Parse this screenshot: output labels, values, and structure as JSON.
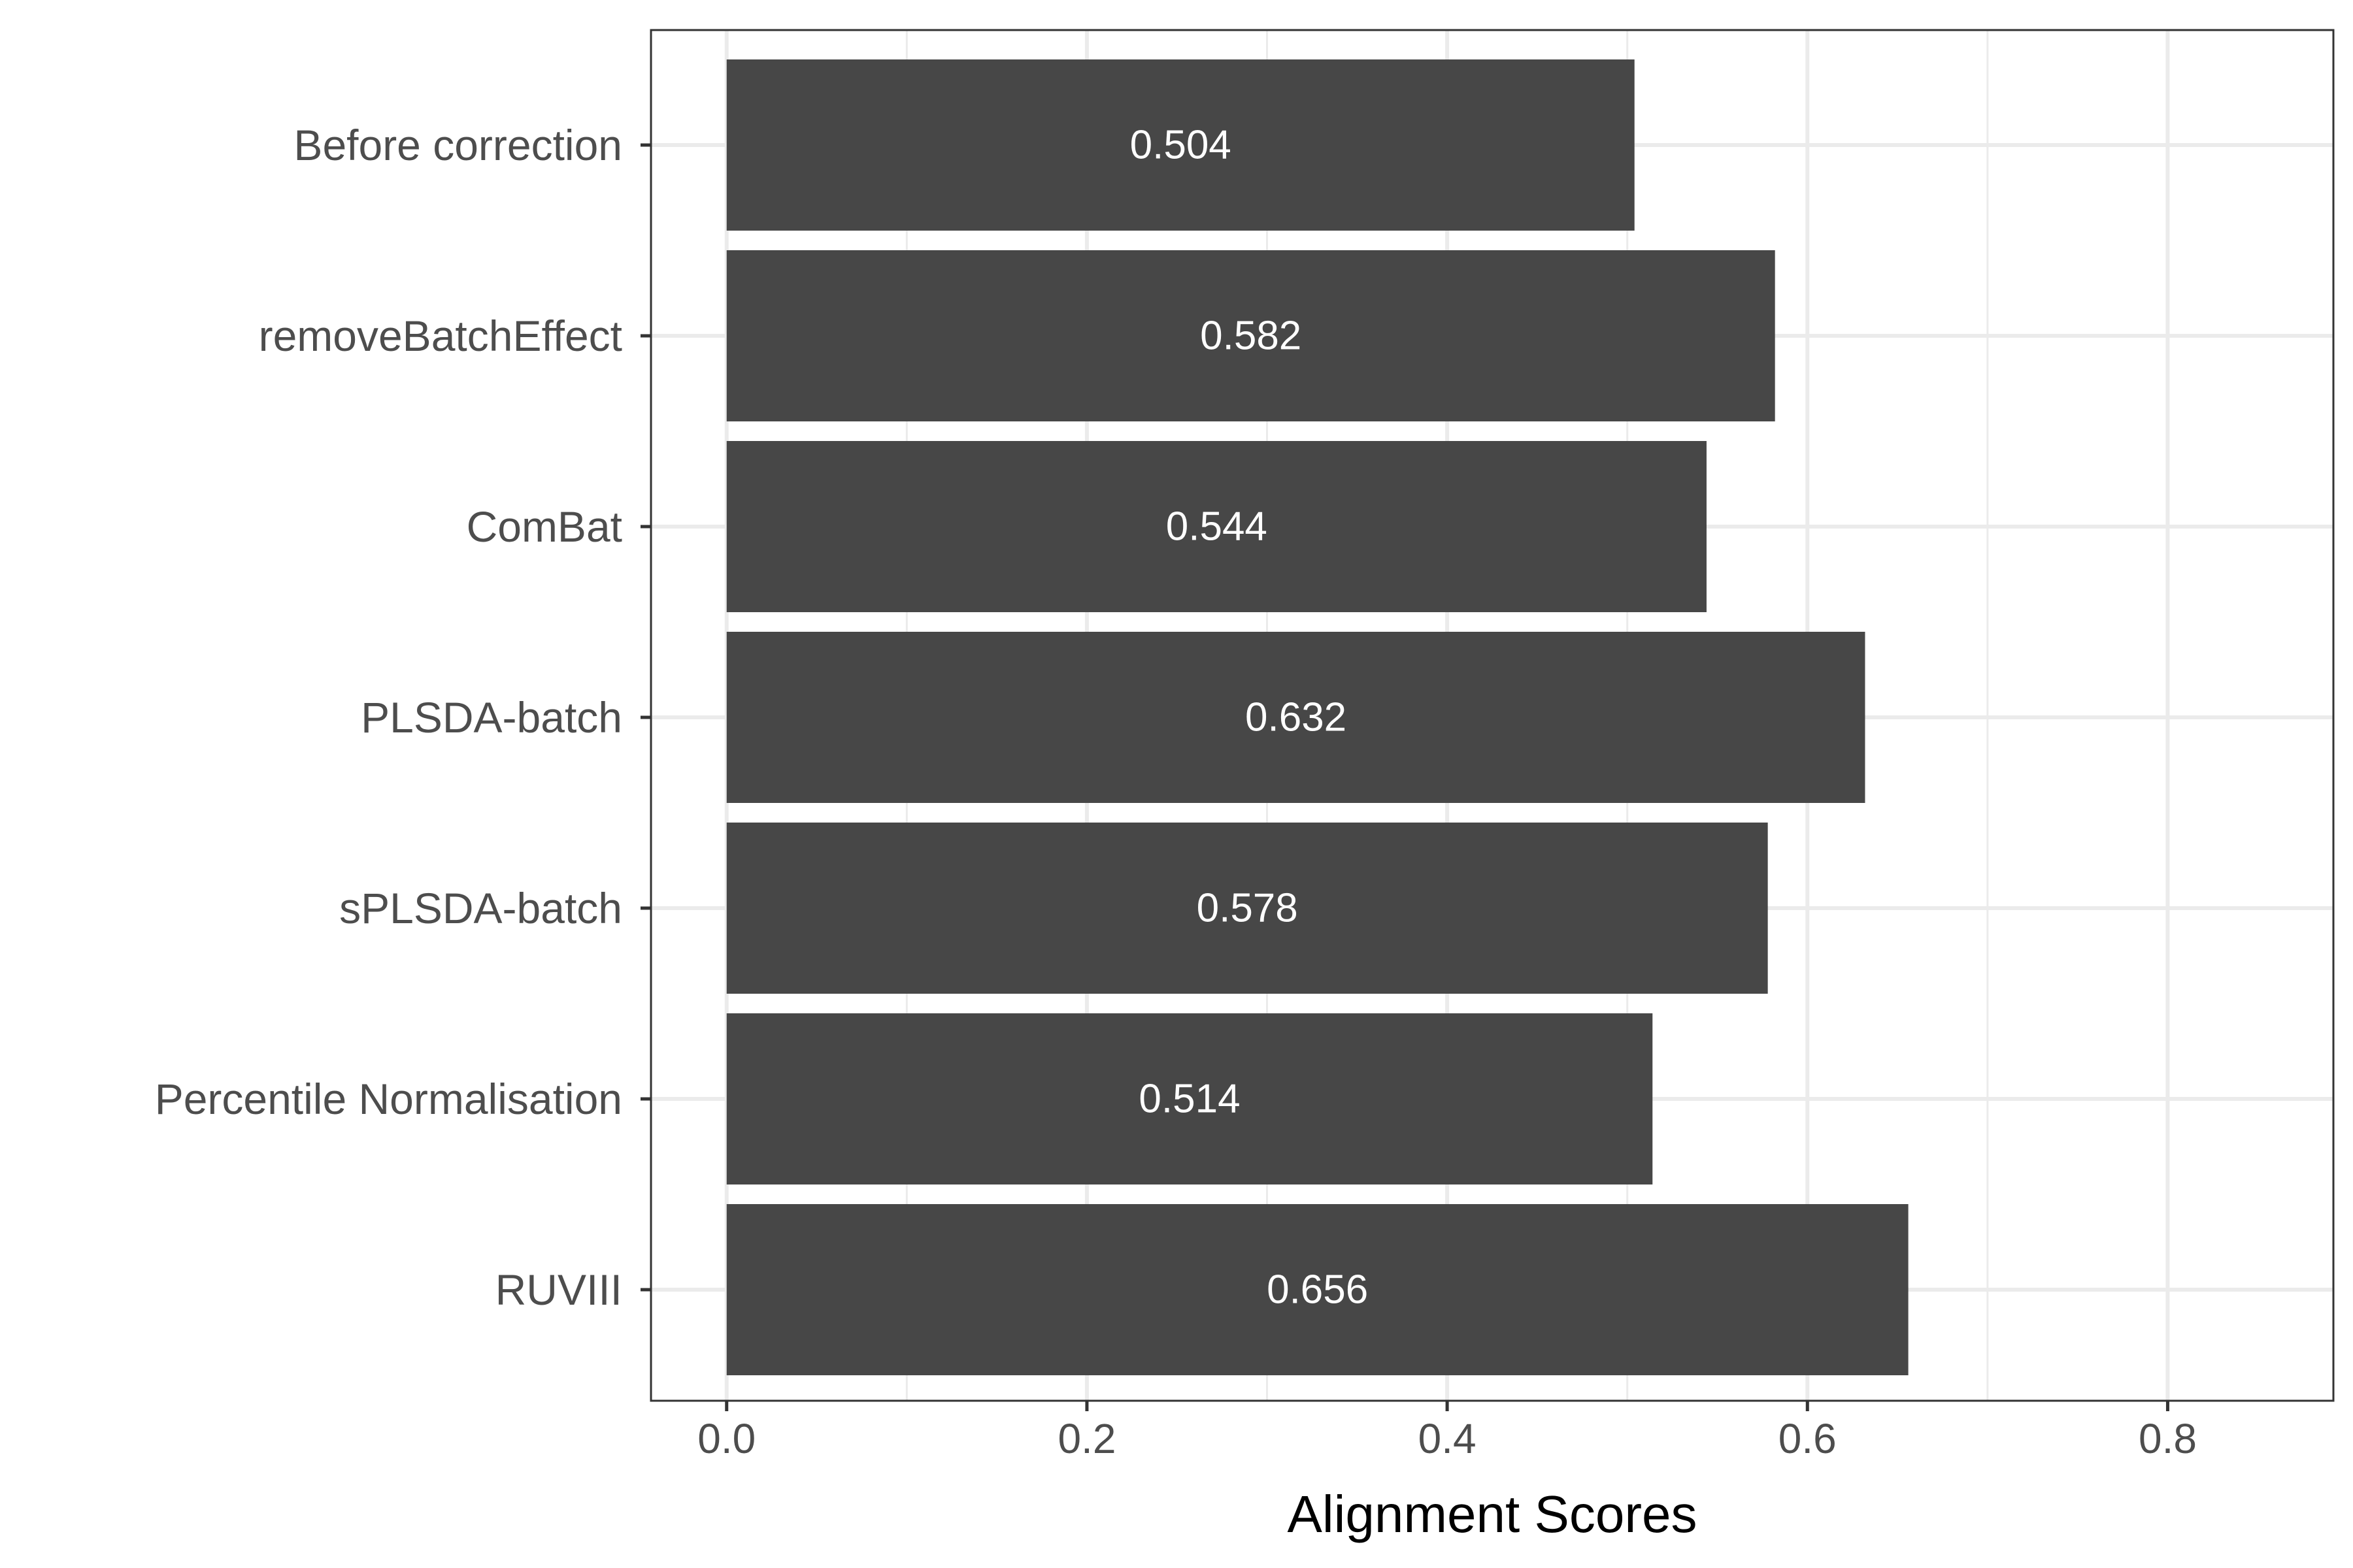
{
  "chart_data": {
    "type": "bar",
    "orientation": "horizontal",
    "title": "",
    "xlabel": "Alignment Scores",
    "ylabel": "",
    "categories": [
      "Before correction",
      "removeBatchEffect",
      "ComBat",
      "PLSDA-batch",
      "sPLSDA-batch",
      "Percentile Normalisation",
      "RUVIII"
    ],
    "values": [
      0.504,
      0.582,
      0.544,
      0.632,
      0.578,
      0.514,
      0.656
    ],
    "value_labels": [
      "0.504",
      "0.582",
      "0.544",
      "0.632",
      "0.578",
      "0.514",
      "0.656"
    ],
    "xlim": [
      -0.042,
      0.892
    ],
    "x_ticks": [
      0.0,
      0.2,
      0.4,
      0.6,
      0.8
    ],
    "x_tick_labels": [
      "0.0",
      "0.2",
      "0.4",
      "0.6",
      "0.8"
    ],
    "x_minor_ticks": [
      0.1,
      0.3,
      0.5,
      0.7
    ],
    "grid": true,
    "legend": "none",
    "colors": {
      "bar": "#474747",
      "grid": "#ebebeb",
      "panel_border": "#333333",
      "tick_text": "#4d4d4d",
      "bar_label_text": "#ffffff",
      "background": "#ffffff"
    }
  }
}
